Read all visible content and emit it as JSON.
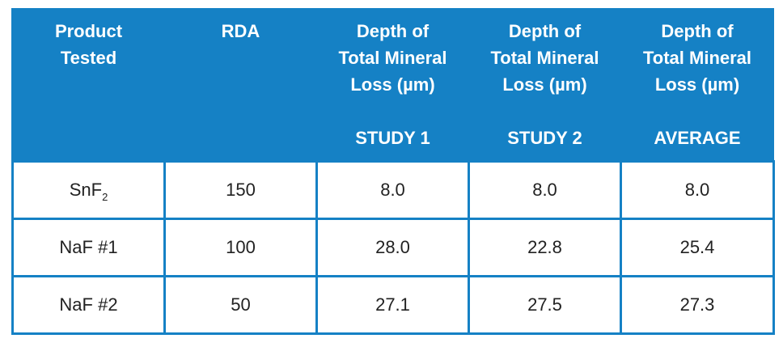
{
  "header": {
    "col1": [
      "Product",
      "Tested"
    ],
    "col2": [
      "RDA"
    ],
    "col3": [
      "Depth of",
      "Total Mineral",
      "Loss (µm)"
    ],
    "col3_study": "STUDY 1",
    "col4": [
      "Depth of",
      "Total Mineral",
      "Loss (µm)"
    ],
    "col4_study": "STUDY 2",
    "col5": [
      "Depth of",
      "Total Mineral",
      "Loss (µm)"
    ],
    "col5_study": "AVERAGE"
  },
  "rows": [
    {
      "product": "SnF",
      "product_sub": "2",
      "rda": "150",
      "study1": "8.0",
      "study2": "8.0",
      "average": "8.0"
    },
    {
      "product": "NaF #1",
      "product_sub": "",
      "rda": "100",
      "study1": "28.0",
      "study2": "22.8",
      "average": "25.4"
    },
    {
      "product": "NaF #2",
      "product_sub": "",
      "rda": "50",
      "study1": "27.1",
      "study2": "27.5",
      "average": "27.3"
    }
  ],
  "colors": {
    "header_bg": "#1581c5",
    "header_text": "#ffffff",
    "cell_text": "#222222"
  }
}
